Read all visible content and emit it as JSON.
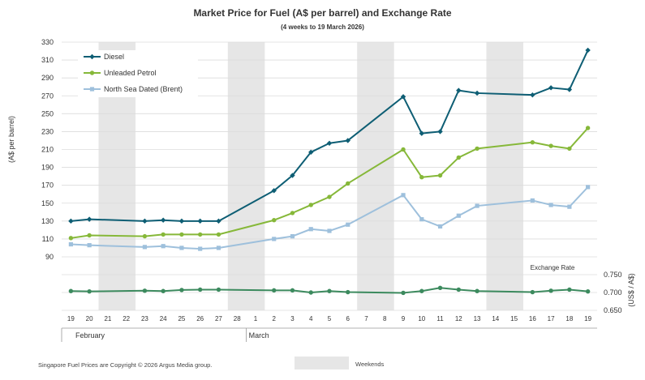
{
  "chart_data": {
    "type": "line",
    "title": "Market Price for Fuel (A$ per barrel) and Exchange Rate",
    "subtitle": "(4 weeks to 19 March 2026)",
    "ylabel": "(A$ per barrel)",
    "y2label": "(US$ / A$)",
    "ylim": [
      90,
      330
    ],
    "yticks": [
      90,
      110,
      130,
      150,
      170,
      190,
      210,
      230,
      250,
      270,
      290,
      310,
      330
    ],
    "y2lim": [
      0.65,
      0.75
    ],
    "y2ticks": [
      "0.650",
      "0.700",
      "0.750"
    ],
    "x_labels": [
      "19",
      "20",
      "21",
      "22",
      "23",
      "24",
      "25",
      "26",
      "27",
      "28",
      "1",
      "2",
      "3",
      "4",
      "5",
      "6",
      "7",
      "8",
      "9",
      "10",
      "11",
      "12",
      "13",
      "14",
      "15",
      "16",
      "17",
      "18",
      "19"
    ],
    "months": [
      "February",
      "March"
    ],
    "weekend_label": "Weekends",
    "exchange_label": "Exchange  Rate",
    "series": [
      {
        "name": "Diesel",
        "color": "#0e5e74",
        "marker": "diamond",
        "points": [
          [
            0,
            130
          ],
          [
            1,
            132
          ],
          [
            4,
            130
          ],
          [
            5,
            131
          ],
          [
            6,
            130
          ],
          [
            7,
            130
          ],
          [
            8,
            130
          ],
          [
            11,
            164
          ],
          [
            12,
            181
          ],
          [
            13,
            207
          ],
          [
            14,
            217
          ],
          [
            15,
            220
          ],
          [
            18,
            269
          ],
          [
            19,
            228
          ],
          [
            20,
            230
          ],
          [
            21,
            276
          ],
          [
            22,
            273
          ],
          [
            25,
            271
          ],
          [
            26,
            279
          ],
          [
            27,
            277
          ],
          [
            28,
            321
          ]
        ]
      },
      {
        "name": "Unleaded Petrol",
        "color": "#86b839",
        "marker": "circle",
        "points": [
          [
            0,
            111
          ],
          [
            1,
            114
          ],
          [
            4,
            113
          ],
          [
            5,
            115
          ],
          [
            6,
            115
          ],
          [
            7,
            115
          ],
          [
            8,
            115
          ],
          [
            11,
            131
          ],
          [
            12,
            139
          ],
          [
            13,
            148
          ],
          [
            14,
            157
          ],
          [
            15,
            172
          ],
          [
            18,
            210
          ],
          [
            19,
            179
          ],
          [
            20,
            181
          ],
          [
            21,
            201
          ],
          [
            22,
            211
          ],
          [
            25,
            218
          ],
          [
            26,
            214
          ],
          [
            27,
            211
          ],
          [
            28,
            234
          ]
        ]
      },
      {
        "name": "North Sea Dated (Brent)",
        "color": "#9ec0dc",
        "marker": "square",
        "points": [
          [
            0,
            104
          ],
          [
            1,
            103
          ],
          [
            4,
            101
          ],
          [
            5,
            102
          ],
          [
            6,
            100
          ],
          [
            7,
            99
          ],
          [
            8,
            100
          ],
          [
            11,
            110
          ],
          [
            12,
            113
          ],
          [
            13,
            121
          ],
          [
            14,
            119
          ],
          [
            15,
            126
          ],
          [
            18,
            159
          ],
          [
            19,
            132
          ],
          [
            20,
            124
          ],
          [
            21,
            136
          ],
          [
            22,
            147
          ],
          [
            25,
            153
          ],
          [
            26,
            148
          ],
          [
            27,
            146
          ],
          [
            28,
            168
          ]
        ]
      },
      {
        "name": "Exchange Rate",
        "color": "#3c8a5e",
        "marker": "circle",
        "axis": "right",
        "points": [
          [
            0,
            0.704
          ],
          [
            1,
            0.703
          ],
          [
            4,
            0.705
          ],
          [
            5,
            0.704
          ],
          [
            6,
            0.707
          ],
          [
            7,
            0.708
          ],
          [
            8,
            0.708
          ],
          [
            11,
            0.706
          ],
          [
            12,
            0.706
          ],
          [
            13,
            0.7
          ],
          [
            14,
            0.704
          ],
          [
            15,
            0.701
          ],
          [
            18,
            0.699
          ],
          [
            19,
            0.704
          ],
          [
            20,
            0.713
          ],
          [
            21,
            0.708
          ],
          [
            22,
            0.704
          ],
          [
            25,
            0.701
          ],
          [
            26,
            0.705
          ],
          [
            27,
            0.708
          ],
          [
            28,
            0.703
          ]
        ]
      }
    ]
  },
  "footer": {
    "copyright": "Singapore  Fuel  Prices  are Copyright  ©  2026  Argus  Media group."
  }
}
